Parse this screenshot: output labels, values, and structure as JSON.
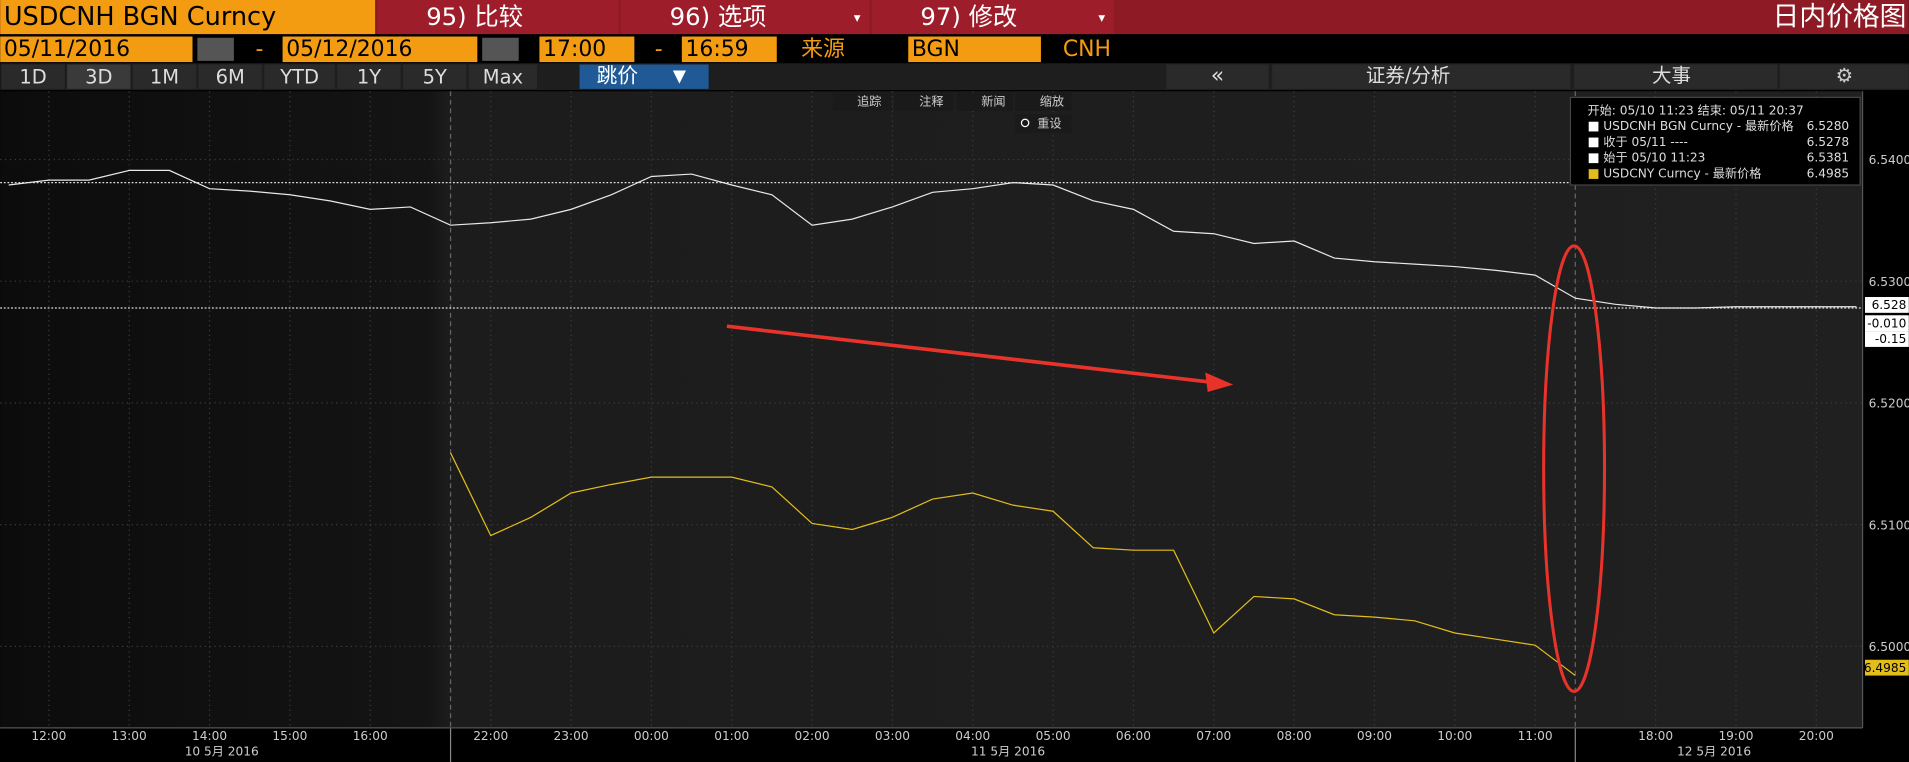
{
  "header": {
    "title": "USDCNH BGN Curncy",
    "menu": [
      "95) 比较",
      "96) 选项",
      "97) 修改"
    ],
    "chart_name": "日内价格图"
  },
  "range": {
    "start_date": "05/11/2016",
    "end_date": "05/12/2016",
    "start_time": "17:00",
    "end_time": "16:59",
    "separator": "-",
    "source_label": "来源",
    "source": "BGN",
    "currency": "CNH"
  },
  "tabs": [
    "1D",
    "3D",
    "1M",
    "6M",
    "YTD",
    "1Y",
    "5Y",
    "Max"
  ],
  "mode": "跳价",
  "right_tabs": [
    "证券/分析",
    "大事"
  ],
  "tools": [
    "追踪",
    "注释",
    "新闻",
    "缩放"
  ],
  "reset": "重设",
  "chart_data": {
    "type": "line",
    "categories": [
      null,
      "12:00",
      null,
      "13:00",
      null,
      "14:00",
      null,
      "15:00",
      null,
      "16:00",
      null,
      null,
      "22:00",
      null,
      "23:00",
      null,
      "00:00",
      null,
      "01:00",
      null,
      "02:00",
      null,
      "03:00",
      null,
      "04:00",
      null,
      "05:00",
      null,
      "06:00",
      null,
      "07:00",
      null,
      "08:00",
      null,
      "09:00",
      null,
      "10:00",
      null,
      "11:00",
      null,
      null,
      "18:00",
      null,
      "19:00",
      null,
      "20:00",
      null
    ],
    "series": [
      {
        "color": "#e8e8e8",
        "values": [
          6.5379,
          6.5383,
          6.5383,
          6.5391,
          6.5391,
          6.5376,
          6.5374,
          6.5371,
          6.5366,
          6.5359,
          6.5361,
          6.5346,
          6.5348,
          6.5351,
          6.5359,
          6.5371,
          6.5386,
          6.5388,
          6.5379,
          6.5371,
          6.5346,
          6.5351,
          6.5361,
          6.5373,
          6.5376,
          6.5381,
          6.5379,
          6.5366,
          6.5359,
          6.5341,
          6.5339,
          6.5331,
          6.5333,
          6.5319,
          6.5316,
          6.5314,
          6.5312,
          6.5309,
          6.5305,
          6.5286,
          6.5281,
          6.5278,
          6.5278,
          6.5279,
          6.5279,
          6.5279,
          6.5279
        ]
      },
      {
        "color": "#e3bd1c",
        "values": [
          null,
          null,
          null,
          null,
          null,
          null,
          null,
          null,
          null,
          null,
          null,
          6.5159,
          6.5091,
          6.5106,
          6.5126,
          6.5133,
          6.5139,
          6.5139,
          6.5139,
          6.5131,
          6.5101,
          6.5096,
          6.5106,
          6.5121,
          6.5126,
          6.5116,
          6.5111,
          6.5081,
          6.5079,
          6.5079,
          6.5011,
          6.5041,
          6.5039,
          6.5026,
          6.5024,
          6.5021,
          6.5011,
          6.5006,
          6.5001,
          6.4976,
          null,
          null,
          null,
          null,
          null,
          null,
          null
        ]
      }
    ],
    "ylim": [
      6.4933,
      6.5456
    ],
    "yticks": [
      {
        "value": 6.54,
        "label": "6.5400"
      },
      {
        "value": 6.53,
        "label": "6.5300"
      },
      {
        "value": 6.52,
        "label": "6.5200"
      },
      {
        "value": 6.51,
        "label": "6.5100"
      },
      {
        "value": 6.5,
        "label": "6.5000"
      }
    ],
    "grid": true,
    "date_labels": [
      "10 5月 2016",
      "11 5月 2016",
      "12 5月 2016"
    ],
    "legend_box": {
      "header": "开始: 05/10 11:23 结束: 05/11 20:37",
      "items": [
        {
          "name": "USDCNH BGN Curncy - 最新价格",
          "value": 6.528,
          "label": "6.5280"
        },
        {
          "name": "收于 05/11 ----",
          "value": 6.5278,
          "label": "6.5278"
        },
        {
          "name": "始于 05/10 11:23",
          "value": 6.5381,
          "label": "6.5381"
        },
        {
          "name": "USDCNY Curncy - 最新价格",
          "value": 6.4985,
          "label": "6.4985"
        }
      ]
    },
    "price_tags": [
      "6.528",
      "-0.010",
      "-0.15",
      "6.4985"
    ]
  }
}
